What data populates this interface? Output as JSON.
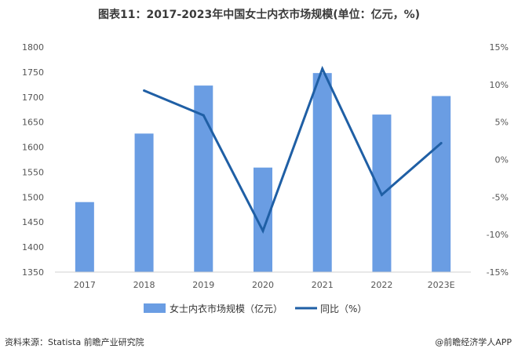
{
  "title": "图表11：2017-2023年中国女士内衣市场规模(单位：亿元，%)",
  "source": "资料来源：Statista 前瞻产业研究院",
  "brand": "@前瞻经济学人APP",
  "colors": {
    "bar": "#6a9de3",
    "line": "#1f5fa5",
    "axis": "#d0d0d0"
  },
  "chart_data": {
    "type": "bar",
    "categories": [
      "2017",
      "2018",
      "2019",
      "2020",
      "2021",
      "2022",
      "2023E"
    ],
    "series": [
      {
        "name": "女士内衣市场规模（亿元）",
        "type": "bar",
        "axis": "left",
        "values": [
          1490,
          1627,
          1723,
          1559,
          1748,
          1665,
          1702
        ]
      },
      {
        "name": "同比（%）",
        "type": "line",
        "axis": "right",
        "values": [
          null,
          9.2,
          5.9,
          -9.5,
          12.1,
          -4.7,
          2.2
        ]
      }
    ],
    "y_left": {
      "min": 1350,
      "max": 1800,
      "ticks": [
        "1350",
        "1400",
        "1450",
        "1500",
        "1550",
        "1600",
        "1650",
        "1700",
        "1750",
        "1800"
      ]
    },
    "y_right": {
      "min": -15,
      "max": 15,
      "ticks": [
        "-15%",
        "-10%",
        "-5%",
        "0%",
        "5%",
        "10%",
        "15%"
      ]
    },
    "legend_position": "bottom",
    "grid": false
  }
}
